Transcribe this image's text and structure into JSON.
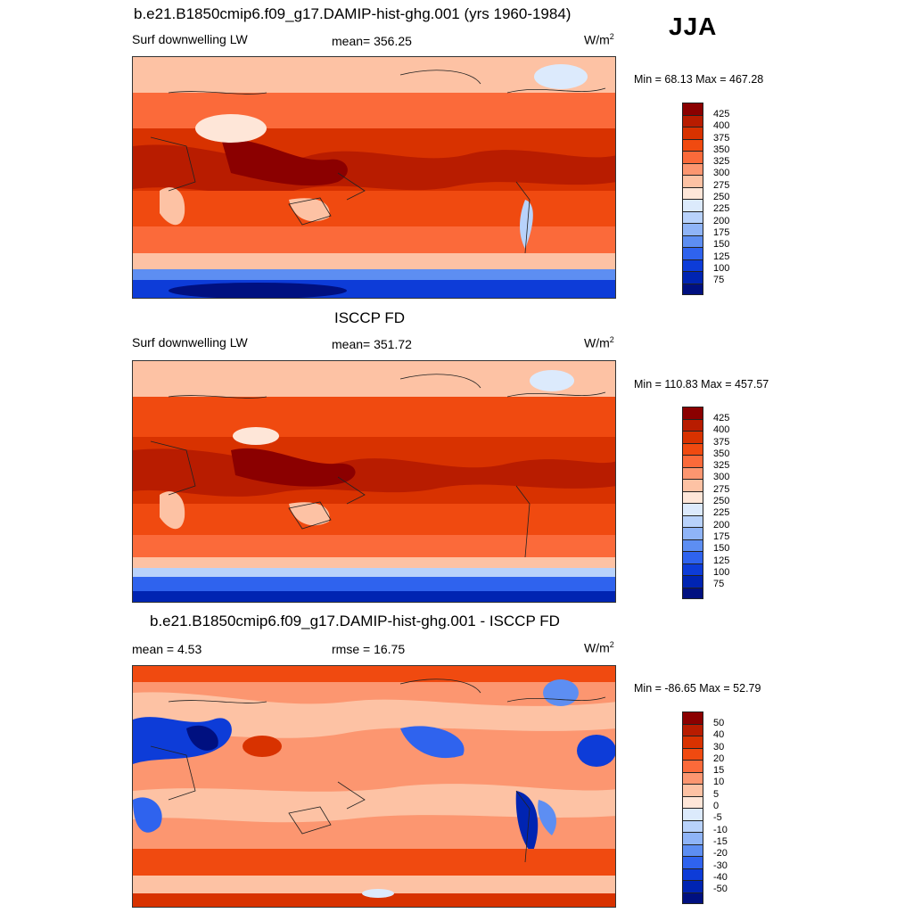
{
  "season": "JJA",
  "units_main": "W/m",
  "units_sup": "2",
  "panels": [
    {
      "title": "b.e21.B1850cmip6.f09_g17.DAMIP-hist-ghg.001 (yrs 1960-1984)",
      "left_label": "Surf downwelling LW",
      "center_label": "mean= 356.25",
      "minmax": "Min =  68.13 Max = 467.28",
      "colorbar_ticks": [
        "425",
        "400",
        "375",
        "350",
        "325",
        "300",
        "275",
        "250",
        "225",
        "200",
        "175",
        "150",
        "125",
        "100",
        "75"
      ],
      "colors": [
        "#8b0000",
        "#b81c00",
        "#d83200",
        "#f04a10",
        "#fb6a3a",
        "#fc9670",
        "#fdc2a4",
        "#fee6d8",
        "#dceafc",
        "#b8d2fb",
        "#8fb4f7",
        "#5d8ef2",
        "#2f63ee",
        "#0d3cd8",
        "#0024b2",
        "#001080"
      ]
    },
    {
      "title": "ISCCP FD",
      "left_label": "Surf downwelling LW",
      "center_label": "mean= 351.72",
      "minmax": "Min = 110.83 Max = 457.57",
      "colorbar_ticks": [
        "425",
        "400",
        "375",
        "350",
        "325",
        "300",
        "275",
        "250",
        "225",
        "200",
        "175",
        "150",
        "125",
        "100",
        "75"
      ],
      "colors": [
        "#8b0000",
        "#b81c00",
        "#d83200",
        "#f04a10",
        "#fb6a3a",
        "#fc9670",
        "#fdc2a4",
        "#fee6d8",
        "#dceafc",
        "#b8d2fb",
        "#8fb4f7",
        "#5d8ef2",
        "#2f63ee",
        "#0d3cd8",
        "#0024b2",
        "#001080"
      ]
    },
    {
      "title": "b.e21.B1850cmip6.f09_g17.DAMIP-hist-ghg.001 - ISCCP FD",
      "left_label": "mean =   4.53",
      "center_label": "rmse =  16.75",
      "minmax": "Min = -86.65 Max =  52.79",
      "colorbar_ticks": [
        "50",
        "40",
        "30",
        "20",
        "15",
        "10",
        "5",
        "0",
        "-5",
        "-10",
        "-15",
        "-20",
        "-30",
        "-40",
        "-50"
      ],
      "colors": [
        "#8b0000",
        "#b81c00",
        "#d83200",
        "#f04a10",
        "#fb6a3a",
        "#fc9670",
        "#fdc2a4",
        "#fee6d8",
        "#dceafc",
        "#b8d2fb",
        "#8fb4f7",
        "#5d8ef2",
        "#2f63ee",
        "#0d3cd8",
        "#0024b2",
        "#001080"
      ]
    }
  ]
}
